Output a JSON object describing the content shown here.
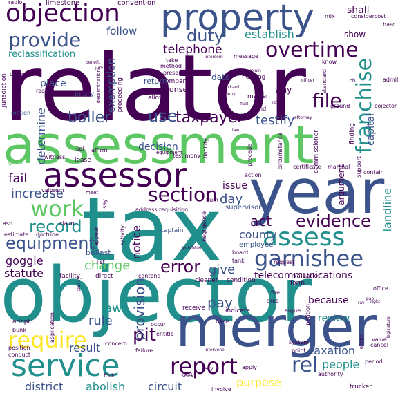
{
  "palette": {
    "dark_purple": "#440154",
    "indigo": "#3b528b",
    "teal": "#21908d",
    "green": "#5dc863",
    "yellow": "#fde725"
  },
  "words": {
    "relator": "relator",
    "assessment": "assessment",
    "tax": "tax",
    "objector": "objector",
    "year": "year",
    "merger": "merger",
    "property": "property",
    "objection": "objection",
    "assessor": "assessor",
    "service": "service",
    "provide": "provide",
    "overtime": "overtime",
    "assess": "assess",
    "garnishee": "garnishee",
    "work": "work",
    "section": "section",
    "equipment": "equipment",
    "record": "record",
    "evidence": "evidence",
    "require": "require",
    "report": "report",
    "error": "error",
    "use": "use",
    "taxpayer": "taxpayer",
    "file": "file",
    "franchise": "franchise",
    "duty": "duty",
    "telephone": "telephone",
    "establish": "establish",
    "follow": "follow",
    "reclassification": "reclassification",
    "boiler": "boiler",
    "testify": "testify",
    "capital": "capital",
    "increase": "increase",
    "fail": "fail",
    "issue": "issue",
    "day": "day",
    "act": "act",
    "county": "county",
    "landline": "landline",
    "telecommunications": "telecommunications",
    "pay": "pay",
    "because": "because",
    "review": "review",
    "rel": "rel",
    "people": "people",
    "taxation": "taxation",
    "purpose": "purpose",
    "district": "district",
    "abolish": "abolish",
    "circuit": "circuit",
    "pit": "pit",
    "rule": "rule",
    "law": "law",
    "result": "result",
    "change": "change",
    "statute": "statute",
    "goggle": "goggle",
    "give": "give",
    "provision": "provision",
    "notice": "notice",
    "determine": "determine",
    "exemption": "exemption",
    "decision": "decision",
    "shall": "shall",
    "show": "show",
    "limestone": "limestone",
    "convention": "convention",
    "radio": "radio",
    "consider": "considercost",
    "operate": "operate",
    "basc": "basc",
    "place": "place",
    "date": "date",
    "injury": "injury",
    "motion": "motion",
    "jurisdiction": "jurisdiction",
    "take": "take",
    "message": "message",
    "method": "method",
    "present": "present",
    "company": "company",
    "counsel": "counsel",
    "allow": "allow",
    "hearing": "hearing",
    "matter": "matter",
    "way": "way",
    "know": "know",
    "admit": "admit",
    "supervisor": "supervisor",
    "employee": "employee",
    "board": "board",
    "argument": "argument",
    "contain": "contain",
    "certificate": "certificate",
    "marshal": "marshal",
    "action": "action",
    "address": "address",
    "requisition": "requisition",
    "claim": "claim",
    "captain": "captain",
    "ballast": "ballast",
    "estimate": "estimate",
    "doctrine": "doctrine",
    "ash": "ash",
    "valorem": "valorem",
    "meet": "meet",
    "lease": "lease",
    "witness": "witness",
    "grant": "grant",
    "affirm": "affirm",
    "equipment_small": "equipment",
    "list": "list",
    "facility": "facility",
    "direct": "direct",
    "party": "party",
    "contend": "contend",
    "cleaner": "cleaner",
    "condition": "condition",
    "tank": "tank",
    "request": "request",
    "valuation": "valuation",
    "form": "form",
    "petition": "petition",
    "area": "area",
    "fire": "fire",
    "argue": "argue",
    "indicate": "indicate",
    "receive": "receive",
    "occur": "occur",
    "adopt": "adopt",
    "bunk": "bunk",
    "application": "application",
    "position": "position",
    "conduct": "conduct",
    "concern": "concern",
    "failure": "failure",
    "levy": "levy",
    "seek": "seek",
    "fork": "fork",
    "involve": "involve",
    "authority": "authority",
    "trucker": "trucker",
    "period": "period",
    "cancel": "cancel",
    "value": "value",
    "office": "office",
    "system": "system",
    "point": "point",
    "apply": "apply",
    "entitle": "entitle",
    "basis": "basis",
    "commissioner": "commissioner",
    "circumstance": "circumstance",
    "negligence": "negligence",
    "appear": "appear",
    "activity": "activity",
    "bum": "bum",
    "find": "find",
    "standard": "standard",
    "ground": "ground",
    "finding": "finding",
    "cojector": "cojector",
    "support": "support",
    "say": "say",
    "sel": "sel",
    "testimony": "testimony",
    "liability": "liability",
    "precede": "precede",
    "return": "return",
    "proceeding": "proceeding",
    "reason": "reason",
    "mix": "mix",
    "benefit": "benefit",
    "jury": "jury",
    "intercom": "intercom",
    "packard": "packard",
    "fuel": "fuel",
    "role": "role",
    "deny": "deny",
    "explain": "explain",
    "allege": "allege",
    "officer": "officer",
    "enter": "enter",
    "ch": "ch",
    "ray": "ray",
    "pan": "pan",
    "determination": "determination",
    "intervene": "intervene",
    "right": "right",
    "legislature": "legislature",
    "attorney": "attorney",
    "law_small": "law",
    "purchase": "purchase"
  }
}
